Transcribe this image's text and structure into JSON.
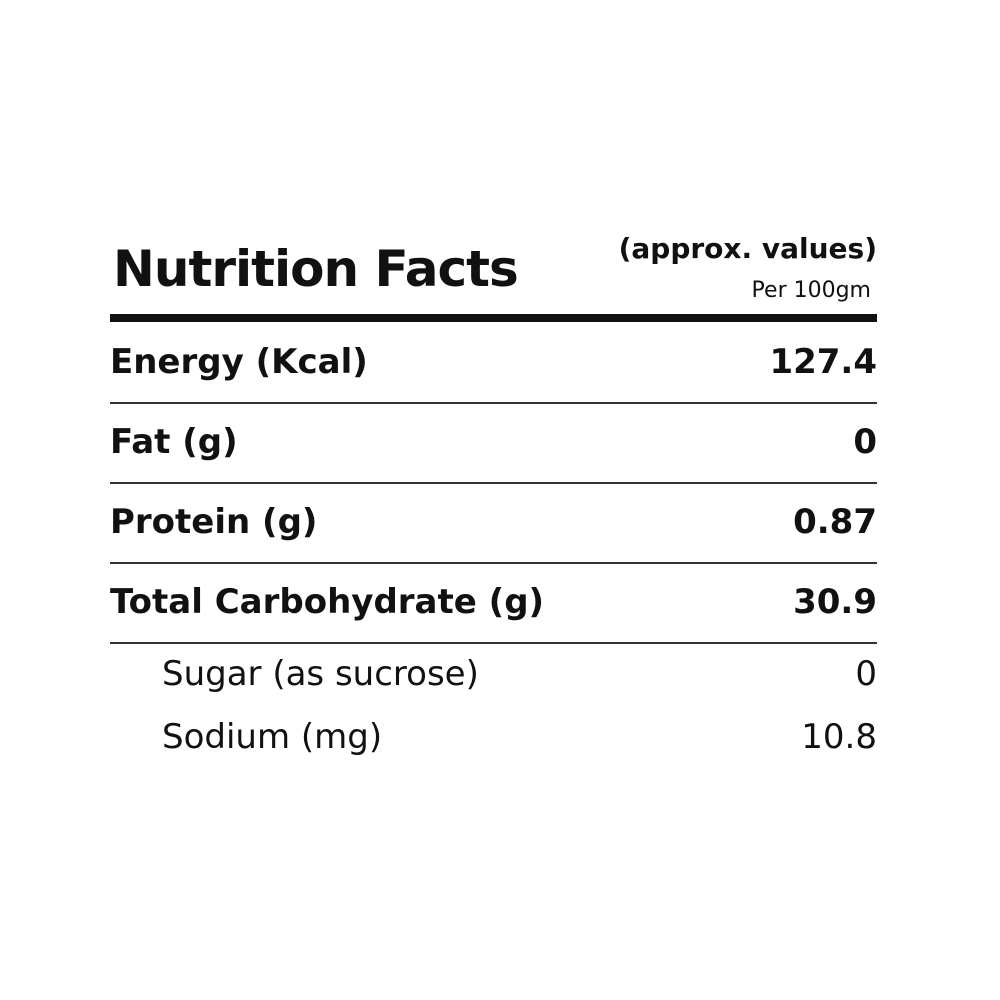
{
  "header": {
    "title": "Nutrition Facts",
    "note": "(approx. values)",
    "basis": "Per 100gm"
  },
  "table": {
    "rows": [
      [
        "Energy (Kcal)",
        "127.4"
      ],
      [
        "Fat (g)",
        "0"
      ],
      [
        "Protein (g)",
        "0.87"
      ],
      [
        "Total Carbohydrate (g)",
        "30.9"
      ]
    ],
    "subrows": [
      [
        "Sugar (as sucrose)",
        "0"
      ],
      [
        "Sodium (mg)",
        "10.8"
      ]
    ]
  }
}
